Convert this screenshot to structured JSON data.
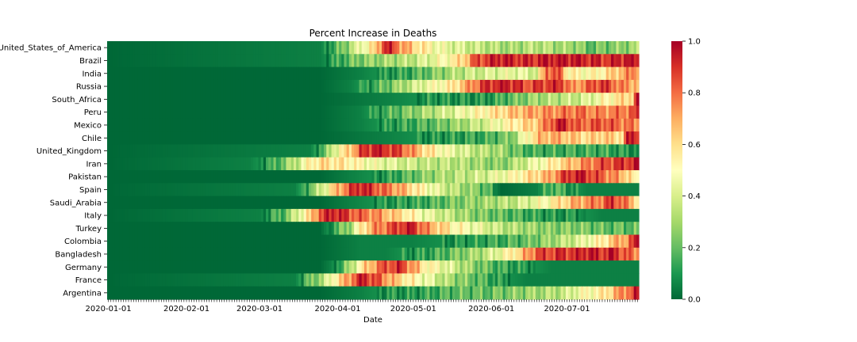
{
  "chart_data": {
    "type": "heatmap",
    "title": "Percent Increase in Deaths",
    "xlabel": "Date",
    "ylabel": "",
    "x_tick_labels": [
      "2020-01-01",
      "2020-02-01",
      "2020-03-01",
      "2020-04-01",
      "2020-05-01",
      "2020-06-01",
      "2020-07-01"
    ],
    "rows": [
      "United_States_of_America",
      "Brazil",
      "India",
      "Russia",
      "South_Africa",
      "Peru",
      "Mexico",
      "Chile",
      "United_Kingdom",
      "Iran",
      "Pakistan",
      "Spain",
      "Saudi_Arabia",
      "Italy",
      "Turkey",
      "Colombia",
      "Bangladesh",
      "Germany",
      "France",
      "Argentina"
    ],
    "colormap": "RdYlGn_r",
    "colors": [
      "#006837",
      "#1a9850",
      "#66bd63",
      "#a6d96a",
      "#d9ef8b",
      "#ffffbf",
      "#fee08b",
      "#fdae61",
      "#f46d43",
      "#d73027",
      "#a50026"
    ],
    "colorbar": {
      "min": 0.0,
      "max": 1.0,
      "tick_labels": [
        "0.0",
        "0.2",
        "0.4",
        "0.6",
        "0.8",
        "1.0"
      ]
    },
    "segments": [
      [
        [
          0,
          0.0
        ],
        [
          84,
          0.05
        ],
        [
          92,
          0.2
        ],
        [
          100,
          0.45
        ],
        [
          106,
          0.6
        ],
        [
          110,
          0.95
        ],
        [
          112,
          0.9
        ],
        [
          116,
          0.75
        ],
        [
          120,
          0.65
        ],
        [
          126,
          0.55
        ],
        [
          132,
          0.45
        ],
        [
          140,
          0.4
        ],
        [
          150,
          0.35
        ],
        [
          160,
          0.3
        ],
        [
          170,
          0.35
        ],
        [
          180,
          0.3
        ],
        [
          186,
          0.3
        ],
        [
          190,
          0.2
        ],
        [
          200,
          0.25
        ],
        [
          210,
          0.3
        ]
      ],
      [
        [
          0,
          0.0
        ],
        [
          84,
          0.05
        ],
        [
          92,
          0.15
        ],
        [
          100,
          0.25
        ],
        [
          110,
          0.3
        ],
        [
          120,
          0.35
        ],
        [
          130,
          0.45
        ],
        [
          140,
          0.6
        ],
        [
          146,
          0.85
        ],
        [
          156,
          0.95
        ],
        [
          166,
          0.9
        ],
        [
          176,
          0.95
        ],
        [
          186,
          0.95
        ],
        [
          196,
          0.9
        ],
        [
          206,
          0.95
        ],
        [
          210,
          0.95
        ]
      ],
      [
        [
          0,
          0.0
        ],
        [
          84,
          0.0
        ],
        [
          100,
          0.05
        ],
        [
          110,
          0.1
        ],
        [
          120,
          0.15
        ],
        [
          130,
          0.25
        ],
        [
          140,
          0.35
        ],
        [
          150,
          0.4
        ],
        [
          160,
          0.45
        ],
        [
          170,
          0.4
        ],
        [
          174,
          0.85
        ],
        [
          180,
          0.8
        ],
        [
          182,
          0.55
        ],
        [
          190,
          0.5
        ],
        [
          196,
          0.55
        ],
        [
          204,
          0.7
        ],
        [
          210,
          0.8
        ]
      ],
      [
        [
          0,
          0.0
        ],
        [
          84,
          0.0
        ],
        [
          96,
          0.05
        ],
        [
          106,
          0.15
        ],
        [
          116,
          0.3
        ],
        [
          126,
          0.45
        ],
        [
          136,
          0.55
        ],
        [
          146,
          0.8
        ],
        [
          150,
          0.9
        ],
        [
          158,
          0.95
        ],
        [
          166,
          0.85
        ],
        [
          176,
          0.9
        ],
        [
          180,
          0.9
        ],
        [
          184,
          0.7
        ],
        [
          196,
          0.9
        ],
        [
          204,
          0.75
        ],
        [
          210,
          0.7
        ]
      ],
      [
        [
          0,
          0.0
        ],
        [
          84,
          0.0
        ],
        [
          110,
          0.05
        ],
        [
          130,
          0.1
        ],
        [
          150,
          0.1
        ],
        [
          160,
          0.2
        ],
        [
          170,
          0.3
        ],
        [
          180,
          0.35
        ],
        [
          190,
          0.4
        ],
        [
          196,
          0.5
        ],
        [
          204,
          0.6
        ],
        [
          208,
          0.65
        ],
        [
          210,
          0.95
        ]
      ],
      [
        [
          0,
          0.0
        ],
        [
          84,
          0.0
        ],
        [
          100,
          0.05
        ],
        [
          110,
          0.15
        ],
        [
          120,
          0.25
        ],
        [
          130,
          0.35
        ],
        [
          140,
          0.45
        ],
        [
          150,
          0.55
        ],
        [
          160,
          0.65
        ],
        [
          166,
          0.7
        ],
        [
          176,
          0.75
        ],
        [
          186,
          0.8
        ],
        [
          196,
          0.75
        ],
        [
          206,
          0.8
        ],
        [
          210,
          0.85
        ]
      ],
      [
        [
          0,
          0.0
        ],
        [
          84,
          0.0
        ],
        [
          100,
          0.05
        ],
        [
          110,
          0.1
        ],
        [
          120,
          0.15
        ],
        [
          130,
          0.2
        ],
        [
          140,
          0.3
        ],
        [
          150,
          0.4
        ],
        [
          160,
          0.55
        ],
        [
          170,
          0.65
        ],
        [
          176,
          0.85
        ],
        [
          180,
          0.95
        ],
        [
          186,
          0.8
        ],
        [
          196,
          0.85
        ],
        [
          210,
          0.75
        ]
      ],
      [
        [
          0,
          0.0
        ],
        [
          84,
          0.0
        ],
        [
          110,
          0.05
        ],
        [
          130,
          0.1
        ],
        [
          150,
          0.15
        ],
        [
          160,
          0.25
        ],
        [
          166,
          0.5
        ],
        [
          170,
          0.65
        ],
        [
          176,
          0.7
        ],
        [
          184,
          0.65
        ],
        [
          190,
          0.6
        ],
        [
          196,
          0.65
        ],
        [
          204,
          0.6
        ],
        [
          206,
          0.95
        ],
        [
          210,
          0.95
        ]
      ],
      [
        [
          0,
          0.0
        ],
        [
          80,
          0.05
        ],
        [
          86,
          0.2
        ],
        [
          90,
          0.45
        ],
        [
          96,
          0.65
        ],
        [
          100,
          0.85
        ],
        [
          106,
          0.95
        ],
        [
          116,
          0.85
        ],
        [
          126,
          0.6
        ],
        [
          136,
          0.45
        ],
        [
          146,
          0.35
        ],
        [
          156,
          0.3
        ],
        [
          162,
          0.2
        ],
        [
          170,
          0.15
        ],
        [
          186,
          0.15
        ],
        [
          196,
          0.15
        ],
        [
          206,
          0.1
        ],
        [
          210,
          0.1
        ]
      ],
      [
        [
          0,
          0.0
        ],
        [
          56,
          0.05
        ],
        [
          66,
          0.15
        ],
        [
          76,
          0.4
        ],
        [
          80,
          0.55
        ],
        [
          86,
          0.6
        ],
        [
          96,
          0.55
        ],
        [
          106,
          0.45
        ],
        [
          116,
          0.4
        ],
        [
          126,
          0.35
        ],
        [
          136,
          0.35
        ],
        [
          146,
          0.3
        ],
        [
          156,
          0.25
        ],
        [
          166,
          0.4
        ],
        [
          176,
          0.55
        ],
        [
          186,
          0.7
        ],
        [
          196,
          0.85
        ],
        [
          206,
          0.9
        ],
        [
          210,
          0.95
        ]
      ],
      [
        [
          0,
          0.0
        ],
        [
          84,
          0.0
        ],
        [
          96,
          0.05
        ],
        [
          110,
          0.1
        ],
        [
          120,
          0.2
        ],
        [
          130,
          0.3
        ],
        [
          140,
          0.35
        ],
        [
          150,
          0.4
        ],
        [
          160,
          0.5
        ],
        [
          168,
          0.6
        ],
        [
          176,
          0.7
        ],
        [
          180,
          0.85
        ],
        [
          186,
          0.95
        ],
        [
          194,
          0.85
        ],
        [
          200,
          0.75
        ],
        [
          206,
          0.65
        ],
        [
          210,
          0.45
        ]
      ],
      [
        [
          0,
          0.0
        ],
        [
          74,
          0.05
        ],
        [
          80,
          0.2
        ],
        [
          86,
          0.45
        ],
        [
          90,
          0.65
        ],
        [
          96,
          0.85
        ],
        [
          100,
          0.95
        ],
        [
          106,
          0.85
        ],
        [
          116,
          0.7
        ],
        [
          126,
          0.5
        ],
        [
          136,
          0.35
        ],
        [
          146,
          0.25
        ],
        [
          150,
          0.2
        ],
        [
          154,
          0.05
        ],
        [
          156,
          0.0
        ],
        [
          170,
          0.05
        ],
        [
          176,
          0.2
        ],
        [
          184,
          0.1
        ],
        [
          190,
          0.05
        ],
        [
          200,
          0.05
        ],
        [
          210,
          0.05
        ]
      ],
      [
        [
          0,
          0.0
        ],
        [
          84,
          0.0
        ],
        [
          96,
          0.05
        ],
        [
          110,
          0.1
        ],
        [
          126,
          0.15
        ],
        [
          140,
          0.25
        ],
        [
          150,
          0.3
        ],
        [
          160,
          0.35
        ],
        [
          170,
          0.45
        ],
        [
          176,
          0.55
        ],
        [
          186,
          0.7
        ],
        [
          196,
          0.8
        ],
        [
          200,
          0.9
        ],
        [
          206,
          0.75
        ],
        [
          210,
          0.6
        ]
      ],
      [
        [
          0,
          0.0
        ],
        [
          60,
          0.05
        ],
        [
          70,
          0.2
        ],
        [
          76,
          0.45
        ],
        [
          80,
          0.6
        ],
        [
          84,
          0.85
        ],
        [
          90,
          0.95
        ],
        [
          96,
          0.85
        ],
        [
          106,
          0.75
        ],
        [
          116,
          0.6
        ],
        [
          126,
          0.45
        ],
        [
          136,
          0.35
        ],
        [
          146,
          0.25
        ],
        [
          156,
          0.2
        ],
        [
          166,
          0.15
        ],
        [
          176,
          0.1
        ],
        [
          186,
          0.1
        ],
        [
          196,
          0.05
        ],
        [
          210,
          0.05
        ]
      ],
      [
        [
          0,
          0.0
        ],
        [
          84,
          0.0
        ],
        [
          86,
          0.05
        ],
        [
          90,
          0.15
        ],
        [
          96,
          0.3
        ],
        [
          100,
          0.55
        ],
        [
          106,
          0.75
        ],
        [
          110,
          0.8
        ],
        [
          116,
          0.9
        ],
        [
          120,
          0.95
        ],
        [
          126,
          0.75
        ],
        [
          136,
          0.55
        ],
        [
          146,
          0.45
        ],
        [
          156,
          0.35
        ],
        [
          166,
          0.3
        ],
        [
          176,
          0.25
        ],
        [
          186,
          0.25
        ],
        [
          196,
          0.2
        ],
        [
          210,
          0.2
        ]
      ],
      [
        [
          0,
          0.0
        ],
        [
          84,
          0.0
        ],
        [
          100,
          0.05
        ],
        [
          120,
          0.05
        ],
        [
          140,
          0.1
        ],
        [
          156,
          0.15
        ],
        [
          166,
          0.2
        ],
        [
          176,
          0.3
        ],
        [
          186,
          0.4
        ],
        [
          196,
          0.55
        ],
        [
          200,
          0.65
        ],
        [
          206,
          0.75
        ],
        [
          208,
          0.85
        ],
        [
          210,
          0.95
        ]
      ],
      [
        [
          0,
          0.0
        ],
        [
          84,
          0.0
        ],
        [
          100,
          0.05
        ],
        [
          110,
          0.05
        ],
        [
          120,
          0.1
        ],
        [
          130,
          0.15
        ],
        [
          140,
          0.25
        ],
        [
          150,
          0.35
        ],
        [
          160,
          0.55
        ],
        [
          166,
          0.7
        ],
        [
          170,
          0.85
        ],
        [
          180,
          0.9
        ],
        [
          186,
          0.9
        ],
        [
          190,
          0.95
        ],
        [
          196,
          0.9
        ],
        [
          200,
          0.95
        ],
        [
          204,
          0.85
        ],
        [
          210,
          0.75
        ]
      ],
      [
        [
          0,
          0.0
        ],
        [
          84,
          0.0
        ],
        [
          88,
          0.05
        ],
        [
          92,
          0.15
        ],
        [
          96,
          0.3
        ],
        [
          100,
          0.55
        ],
        [
          106,
          0.75
        ],
        [
          110,
          0.85
        ],
        [
          116,
          0.9
        ],
        [
          120,
          0.75
        ],
        [
          126,
          0.55
        ],
        [
          136,
          0.4
        ],
        [
          146,
          0.25
        ],
        [
          156,
          0.15
        ],
        [
          166,
          0.1
        ],
        [
          176,
          0.05
        ],
        [
          186,
          0.05
        ],
        [
          196,
          0.05
        ],
        [
          210,
          0.05
        ]
      ],
      [
        [
          0,
          0.0
        ],
        [
          74,
          0.05
        ],
        [
          80,
          0.2
        ],
        [
          86,
          0.35
        ],
        [
          90,
          0.55
        ],
        [
          96,
          0.75
        ],
        [
          100,
          0.95
        ],
        [
          106,
          0.85
        ],
        [
          116,
          0.6
        ],
        [
          126,
          0.45
        ],
        [
          136,
          0.3
        ],
        [
          146,
          0.2
        ],
        [
          156,
          0.1
        ],
        [
          166,
          0.05
        ],
        [
          176,
          0.05
        ],
        [
          186,
          0.05
        ],
        [
          196,
          0.05
        ],
        [
          210,
          0.05
        ]
      ],
      [
        [
          0,
          0.0
        ],
        [
          84,
          0.0
        ],
        [
          100,
          0.05
        ],
        [
          110,
          0.1
        ],
        [
          120,
          0.1
        ],
        [
          130,
          0.15
        ],
        [
          140,
          0.2
        ],
        [
          150,
          0.2
        ],
        [
          160,
          0.25
        ],
        [
          170,
          0.3
        ],
        [
          180,
          0.35
        ],
        [
          186,
          0.45
        ],
        [
          190,
          0.5
        ],
        [
          196,
          0.55
        ],
        [
          200,
          0.65
        ],
        [
          204,
          0.75
        ],
        [
          208,
          0.85
        ],
        [
          210,
          0.95
        ]
      ]
    ]
  }
}
